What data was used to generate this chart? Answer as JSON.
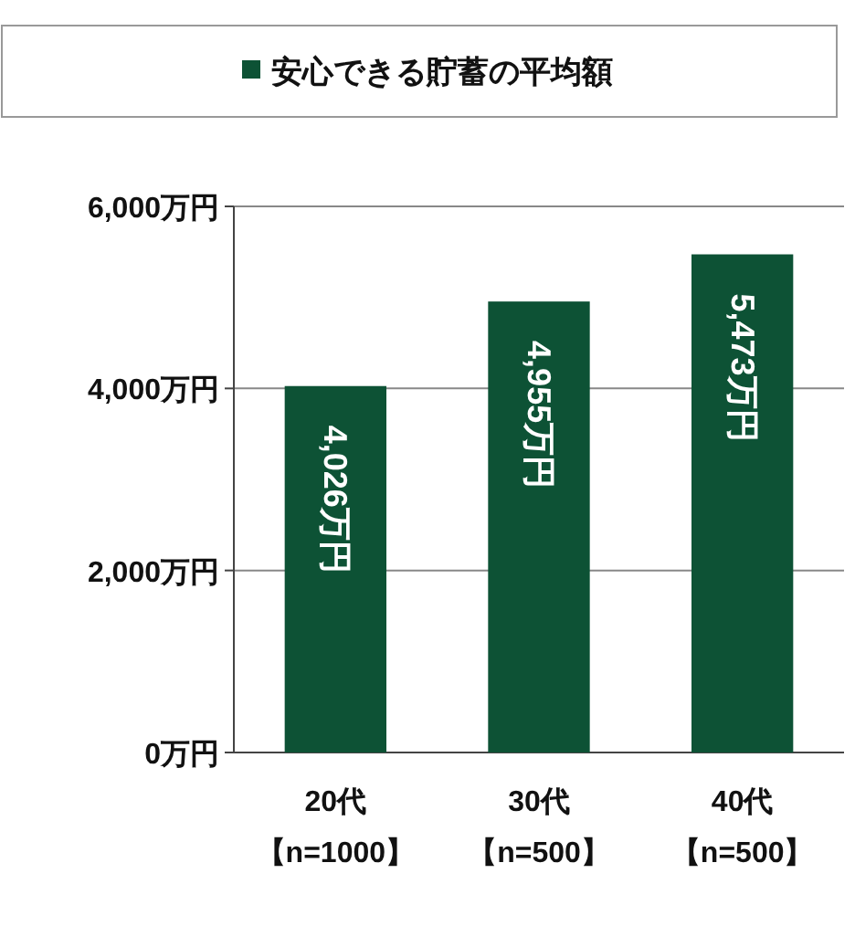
{
  "chart_data": {
    "type": "bar",
    "categories": [
      "20代【n=1000】",
      "30代【n=500】",
      "40代【n=500】"
    ],
    "series": [
      {
        "name": "安心できる貯蓄の平均額",
        "color": "#0d5235",
        "values": [
          4026,
          4955,
          5473
        ],
        "value_labels": [
          "4,026万円",
          "4,955万円",
          "5,473万円"
        ]
      }
    ],
    "ylim": [
      0,
      6000
    ],
    "yticks": [
      {
        "value": 0,
        "label": "0万円"
      },
      {
        "value": 2000,
        "label": "2,000万円"
      },
      {
        "value": 4000,
        "label": "4,000万円"
      },
      {
        "value": 6000,
        "label": "6,000万円"
      }
    ],
    "grid": "y",
    "legend": "top"
  }
}
